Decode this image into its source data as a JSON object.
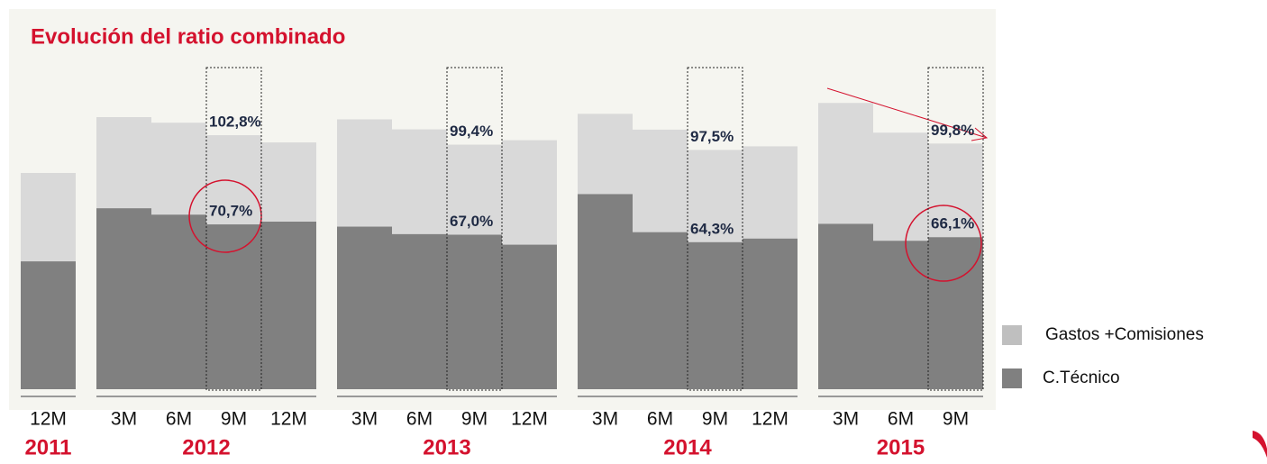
{
  "chart_data": {
    "type": "bar",
    "overlay": true,
    "title": "Evolución del ratio combinado",
    "groups": [
      {
        "name": "2011",
        "categories": [
          "12M"
        ]
      },
      {
        "name": "2012",
        "categories": [
          "3M",
          "6M",
          "9M",
          "12M"
        ]
      },
      {
        "name": "2013",
        "categories": [
          "3M",
          "6M",
          "9M",
          "12M"
        ]
      },
      {
        "name": "2014",
        "categories": [
          "3M",
          "6M",
          "9M",
          "12M"
        ]
      },
      {
        "name": "2015",
        "categories": [
          "3M",
          "6M",
          "9M"
        ]
      }
    ],
    "series": [
      {
        "name": "Gastos +Comisiones",
        "color": "#d9d9d9",
        "values": [
          89.2,
          109.3,
          107.3,
          102.8,
          100.2,
          108.5,
          104.9,
          99.4,
          101.0,
          110.5,
          104.8,
          97.5,
          98.8,
          114.4,
          103.7,
          99.8
        ],
        "value_labels": [
          null,
          null,
          null,
          "102,8%",
          null,
          null,
          null,
          "99,4%",
          null,
          null,
          null,
          "97,5%",
          null,
          null,
          null,
          "99,8%"
        ]
      },
      {
        "name": "C.Técnico",
        "color": "#808080",
        "values": [
          57.4,
          76.5,
          74.2,
          70.7,
          71.7,
          69.9,
          67.2,
          67.0,
          63.4,
          81.6,
          67.9,
          64.3,
          65.6,
          70.9,
          64.8,
          66.1
        ],
        "value_labels": [
          null,
          null,
          null,
          "70,7%",
          null,
          null,
          null,
          "67,0%",
          null,
          null,
          null,
          "64,3%",
          null,
          null,
          null,
          "66,1%"
        ]
      }
    ],
    "ylim": [
      11.4,
      127
    ]
  }
}
